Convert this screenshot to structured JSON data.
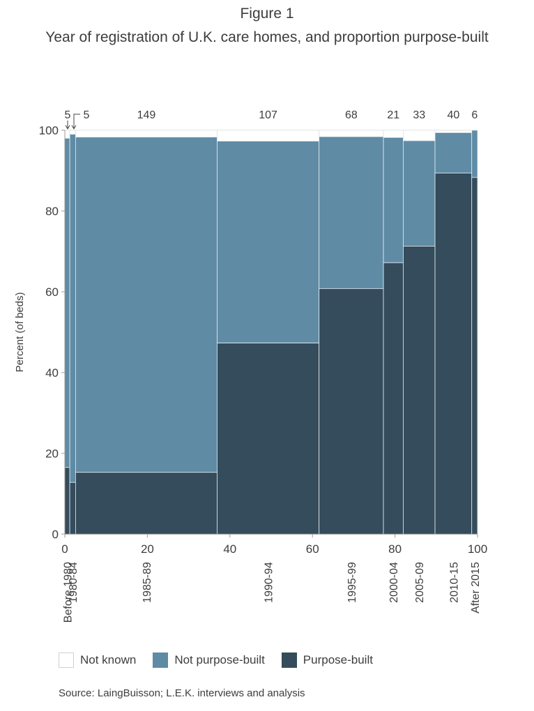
{
  "figure_label": "Figure 1",
  "title": "Year of registration of U.K. care homes, and proportion purpose-built",
  "source": "Source: LaingBuisson; L.E.K. interviews and analysis",
  "colors": {
    "not_known": "#ffffff",
    "not_purpose_built": "#5f8ba5",
    "purpose_built": "#344c5b",
    "axis": "#9a9a9a",
    "text": "#3d3d3d"
  },
  "chart_data": {
    "type": "marimekko",
    "title": "Year of registration of U.K. care homes, and proportion purpose-built",
    "xlabel": "",
    "ylabel": "Percent (of beds)",
    "xlim": [
      0,
      100
    ],
    "ylim": [
      0,
      100
    ],
    "x_ticks": [
      0,
      20,
      40,
      60,
      80,
      100
    ],
    "y_ticks": [
      0,
      20,
      40,
      60,
      80,
      100
    ],
    "grid": false,
    "legend_position": "bottom-left",
    "series_names": [
      "Not known",
      "Not purpose-built",
      "Purpose-built"
    ],
    "categories": [
      {
        "label": "Before 1980",
        "top_label": "5",
        "x_start": 0,
        "x_end": 1.2,
        "purpose_built": 16.5,
        "not_purpose_built": 81.5,
        "not_known": 2.0
      },
      {
        "label": "1980-84",
        "top_label": "5",
        "x_start": 1.2,
        "x_end": 2.6,
        "purpose_built": 12.8,
        "not_purpose_built": 86.2,
        "not_known": 1.0
      },
      {
        "label": "1985-89",
        "top_label": "149",
        "x_start": 2.6,
        "x_end": 36.9,
        "purpose_built": 15.3,
        "not_purpose_built": 83.0,
        "not_known": 1.7
      },
      {
        "label": "1990-94",
        "top_label": "107",
        "x_start": 36.9,
        "x_end": 61.6,
        "purpose_built": 47.3,
        "not_purpose_built": 50.0,
        "not_known": 2.7
      },
      {
        "label": "1995-99",
        "top_label": "68",
        "x_start": 61.6,
        "x_end": 77.2,
        "purpose_built": 60.8,
        "not_purpose_built": 37.6,
        "not_known": 1.6
      },
      {
        "label": "2000-04",
        "top_label": "21",
        "x_start": 77.2,
        "x_end": 82.0,
        "purpose_built": 67.2,
        "not_purpose_built": 31.0,
        "not_known": 1.8
      },
      {
        "label": "2005-09",
        "top_label": "33",
        "x_start": 82.0,
        "x_end": 89.7,
        "purpose_built": 71.3,
        "not_purpose_built": 26.1,
        "not_known": 2.6
      },
      {
        "label": "2010-15",
        "top_label": "40",
        "x_start": 89.7,
        "x_end": 98.6,
        "purpose_built": 89.4,
        "not_purpose_built": 10.0,
        "not_known": 0.6
      },
      {
        "label": "After 2015",
        "top_label": "6",
        "x_start": 98.6,
        "x_end": 100,
        "purpose_built": 88.3,
        "not_purpose_built": 11.7,
        "not_known": 0.0
      }
    ]
  }
}
